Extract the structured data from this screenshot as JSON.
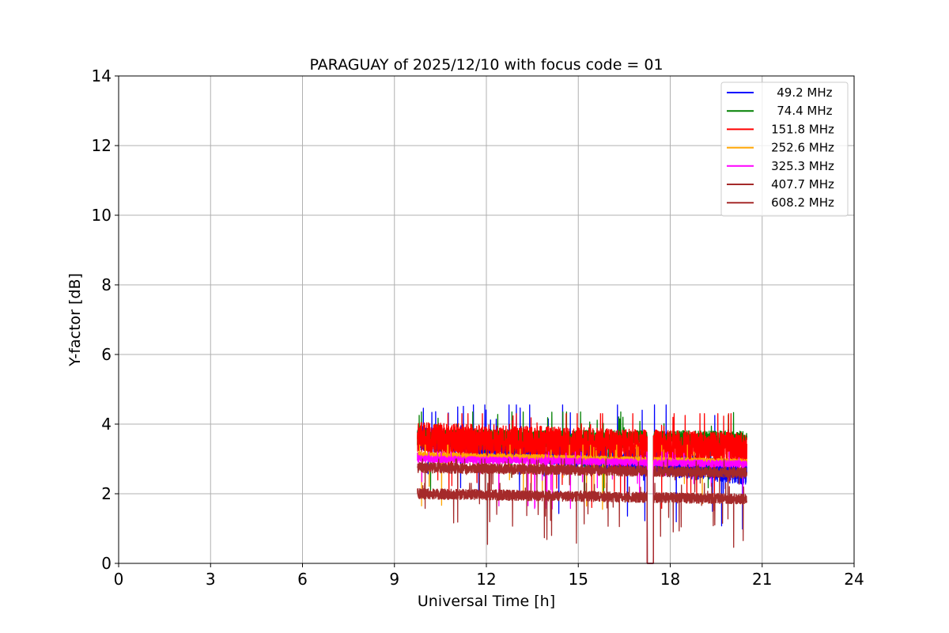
{
  "chart_data": {
    "type": "line",
    "title": "PARAGUAY of 2025/12/10 with focus code = 01",
    "xlabel": "Universal Time [h]",
    "ylabel": "Y-factor [dB]",
    "xlim": [
      0,
      24
    ],
    "ylim": [
      0,
      14
    ],
    "xticks": [
      0,
      3,
      6,
      9,
      12,
      15,
      18,
      21,
      24
    ],
    "yticks": [
      0,
      2,
      4,
      6,
      8,
      10,
      12,
      14
    ],
    "xtick_labels": [
      "0",
      "3",
      "6",
      "9",
      "12",
      "15",
      "18",
      "21",
      "24"
    ],
    "ytick_labels": [
      "0",
      "2",
      "4",
      "6",
      "8",
      "10",
      "12",
      "14"
    ],
    "grid": true,
    "legend_position": "top-right",
    "data_range_hours": [
      9.75,
      20.5
    ],
    "dropout_hours": [
      17.25,
      17.45
    ],
    "series": [
      {
        "name": " 49.2 MHz",
        "color": "#0000ff",
        "level_start": 3.6,
        "level_end": 2.6,
        "noise": 0.35,
        "spike_max": 4.55
      },
      {
        "name": " 74.4 MHz",
        "color": "#008000",
        "level_start": 3.6,
        "level_end": 3.55,
        "noise": 0.25,
        "spike_max": 4.35
      },
      {
        "name": "151.8 MHz",
        "color": "#ff0000",
        "level_start": 3.6,
        "level_end": 3.3,
        "noise": 0.45,
        "spike_max": 4.3
      },
      {
        "name": "252.6 MHz",
        "color": "#ffa500",
        "level_start": 3.1,
        "level_end": 2.9,
        "noise": 0.1,
        "spike_max": 3.4
      },
      {
        "name": "325.3 MHz",
        "color": "#ff00ff",
        "level_start": 3.0,
        "level_end": 2.85,
        "noise": 0.1,
        "spike_max": 3.2
      },
      {
        "name": "407.7 MHz",
        "color": "#a52a2a",
        "level_start": 2.75,
        "level_end": 2.6,
        "noise": 0.15,
        "spike_max": 3.0
      },
      {
        "name": "608.2 MHz",
        "color": "#a52a2a",
        "level_start": 2.0,
        "level_end": 1.85,
        "noise": 0.15,
        "spike_max": 2.3
      }
    ]
  }
}
